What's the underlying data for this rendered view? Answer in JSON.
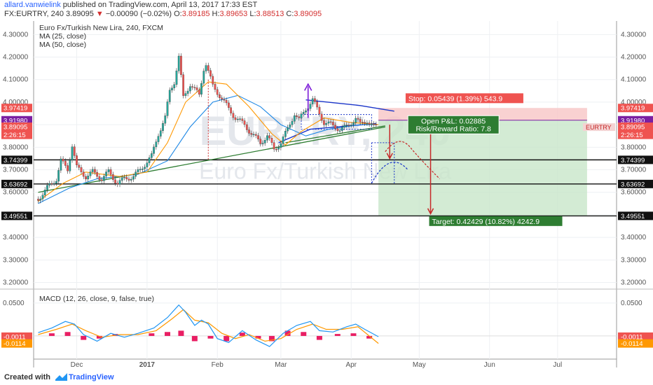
{
  "header": {
    "author": "allard.vanwielink",
    "published": "published on TradingView.com, April 13, 2017 17:33 EST",
    "symbol_line_prefix": "FX:EURTRY, 240  3.89095",
    "change": "−0.00090 (−0.02%)",
    "ohlc_o_label": "O:",
    "ohlc_o": "3.89185",
    "ohlc_h_label": "H:",
    "ohlc_h": "3.89653",
    "ohlc_l_label": "L:",
    "ohlc_l": "3.88513",
    "ohlc_c_label": "C:",
    "ohlc_c": "3.89095"
  },
  "footer": {
    "created_with": "Created with",
    "brand": "TradingView"
  },
  "colors": {
    "up": "#26a69a",
    "down": "#ef5350",
    "ma25": "#ff9800",
    "ma50": "#1e88e5",
    "macd": "#2196f3",
    "signal": "#ff9800",
    "hist": "#e91e63",
    "stop_zone": "#f8c6c6",
    "target_zone": "#c8e6c9",
    "trend": "#2e7d32",
    "wedge": "#1a35c9",
    "arrow": "#7c1bd8",
    "projection": "#c62828"
  },
  "chart_data": [
    {
      "type": "line",
      "title": "Euro Fx/Turkish New Lira, 240, FXCM",
      "watermark_symbol": "EURTRY, 240",
      "watermark_name": "Euro Fx/Turkish New Lira",
      "legend": [
        "MA (25, close)",
        "MA (50, close)"
      ],
      "ylim": [
        3.18,
        4.36
      ],
      "y_ticks": [
        "3.20000",
        "3.30000",
        "3.40000",
        "3.50000",
        "3.60000",
        "3.70000",
        "3.80000",
        "3.90000",
        "4.00000",
        "4.10000",
        "4.20000",
        "4.30000"
      ],
      "x_ticks": [
        "Dec",
        "2017",
        "Feb",
        "Mar",
        "Apr",
        "May",
        "Jun",
        "Jul"
      ],
      "x_tick_dates": [
        "2016-12-01",
        "2017-01-01",
        "2017-02-01",
        "2017-03-01",
        "2017-04-01",
        "2017-05-01",
        "2017-06-01",
        "2017-07-01"
      ],
      "xlim": [
        "2016-11-12",
        "2017-07-27"
      ],
      "price_path": [
        [
          "2016-11-14",
          3.57
        ],
        [
          "2016-11-18",
          3.62
        ],
        [
          "2016-11-22",
          3.66
        ],
        [
          "2016-11-24",
          3.74
        ],
        [
          "2016-11-27",
          3.7
        ],
        [
          "2016-11-29",
          3.81
        ],
        [
          "2016-12-01",
          3.71
        ],
        [
          "2016-12-05",
          3.67
        ],
        [
          "2016-12-08",
          3.69
        ],
        [
          "2016-12-12",
          3.66
        ],
        [
          "2016-12-15",
          3.69
        ],
        [
          "2016-12-19",
          3.64
        ],
        [
          "2016-12-22",
          3.66
        ],
        [
          "2016-12-26",
          3.67
        ],
        [
          "2016-12-29",
          3.7
        ],
        [
          "2017-01-03",
          3.76
        ],
        [
          "2017-01-06",
          3.86
        ],
        [
          "2017-01-09",
          3.93
        ],
        [
          "2017-01-11",
          4.05
        ],
        [
          "2017-01-13",
          4.09
        ],
        [
          "2017-01-15",
          4.2
        ],
        [
          "2017-01-17",
          4.02
        ],
        [
          "2017-01-20",
          4.08
        ],
        [
          "2017-01-24",
          4.03
        ],
        [
          "2017-01-26",
          4.15
        ],
        [
          "2017-01-27",
          4.17
        ],
        [
          "2017-01-30",
          4.07
        ],
        [
          "2017-02-02",
          4.03
        ],
        [
          "2017-02-06",
          3.97
        ],
        [
          "2017-02-09",
          3.93
        ],
        [
          "2017-02-13",
          3.9
        ],
        [
          "2017-02-16",
          3.86
        ],
        [
          "2017-02-20",
          3.82
        ],
        [
          "2017-02-23",
          3.85
        ],
        [
          "2017-02-26",
          3.79
        ],
        [
          "2017-03-01",
          3.82
        ],
        [
          "2017-03-04",
          3.88
        ],
        [
          "2017-03-07",
          3.95
        ],
        [
          "2017-03-09",
          3.92
        ],
        [
          "2017-03-12",
          3.97
        ],
        [
          "2017-03-15",
          4.01
        ],
        [
          "2017-03-17",
          3.97
        ],
        [
          "2017-03-20",
          3.91
        ],
        [
          "2017-03-23",
          3.9
        ],
        [
          "2017-03-27",
          3.88
        ],
        [
          "2017-03-30",
          3.89
        ],
        [
          "2017-04-03",
          3.93
        ],
        [
          "2017-04-05",
          3.9
        ],
        [
          "2017-04-08",
          3.92
        ],
        [
          "2017-04-11",
          3.89
        ],
        [
          "2017-04-13",
          3.89095
        ]
      ],
      "ma25_path": [
        [
          "2016-11-14",
          3.56
        ],
        [
          "2016-11-25",
          3.64
        ],
        [
          "2016-12-05",
          3.69
        ],
        [
          "2016-12-20",
          3.67
        ],
        [
          "2017-01-01",
          3.69
        ],
        [
          "2017-01-10",
          3.82
        ],
        [
          "2017-01-18",
          4.0
        ],
        [
          "2017-01-28",
          4.09
        ],
        [
          "2017-02-05",
          4.08
        ],
        [
          "2017-02-15",
          3.98
        ],
        [
          "2017-02-25",
          3.86
        ],
        [
          "2017-03-03",
          3.81
        ],
        [
          "2017-03-10",
          3.87
        ],
        [
          "2017-03-20",
          3.93
        ],
        [
          "2017-04-01",
          3.91
        ],
        [
          "2017-04-13",
          3.9
        ]
      ],
      "ma50_path": [
        [
          "2016-11-14",
          3.55
        ],
        [
          "2016-11-28",
          3.62
        ],
        [
          "2016-12-10",
          3.66
        ],
        [
          "2016-12-28",
          3.68
        ],
        [
          "2017-01-10",
          3.74
        ],
        [
          "2017-01-20",
          3.89
        ],
        [
          "2017-01-30",
          4.0
        ],
        [
          "2017-02-10",
          4.03
        ],
        [
          "2017-02-20",
          3.98
        ],
        [
          "2017-03-01",
          3.9
        ],
        [
          "2017-03-12",
          3.85
        ],
        [
          "2017-03-22",
          3.88
        ],
        [
          "2017-04-05",
          3.9
        ],
        [
          "2017-04-13",
          3.9
        ]
      ],
      "horizontal_levels": [
        {
          "value": 3.74399,
          "label": "3.74399"
        },
        {
          "value": 3.63692,
          "label": "3.63692"
        },
        {
          "value": 3.49551,
          "label": "3.49551"
        }
      ],
      "right_labels": [
        {
          "value": 3.97419,
          "label": "3.97419",
          "color": "#ef5350"
        },
        {
          "value": 3.9198,
          "label": "3.91980",
          "color": "#7b1fa2"
        },
        {
          "value": 3.89095,
          "label": "3.89095",
          "color": "#ef5350"
        },
        {
          "value": 3.855,
          "label": "2:26:15",
          "color": "#ef5350"
        }
      ],
      "left_labels": [
        {
          "value": 3.97419,
          "label": "3.97419",
          "color": "#ef5350"
        },
        {
          "value": 3.9198,
          "label": "3.91980",
          "color": "#7b1fa2"
        },
        {
          "value": 3.89095,
          "label": "3.89095",
          "color": "#ef5350"
        },
        {
          "value": 3.855,
          "label": "2:26:15",
          "color": "#ef5350"
        }
      ],
      "symbol_tag": "EURTRY",
      "position": {
        "entry": 3.9198,
        "stop": 3.97419,
        "target": 3.49551,
        "start": "2017-04-13",
        "end": "2017-07-14",
        "stop_label": "Stop: 0.05439 (1.39%) 543.9",
        "pnl_label": "Open P&L: 0.02885",
        "rr_label": "Risk/Reward Ratio: 7.8",
        "target_label": "Target: 0.42429 (10.82%) 4242.9"
      }
    },
    {
      "type": "line",
      "title": "MACD (12, 26, close, 9, false, true)",
      "ylim": [
        -0.032,
        0.068
      ],
      "y_ticks": [
        "0.0500"
      ],
      "y_tick_values": [
        0.05
      ],
      "right_labels": [
        {
          "value": -0.0011,
          "label": "-0.0011",
          "color": "#ef5350"
        },
        {
          "value": -0.0114,
          "label": "-0.0114",
          "color": "#ff9800"
        }
      ],
      "macd": [
        [
          "2016-11-14",
          0.005
        ],
        [
          "2016-11-20",
          0.012
        ],
        [
          "2016-11-26",
          0.022
        ],
        [
          "2016-11-30",
          0.018
        ],
        [
          "2016-12-04",
          0.002
        ],
        [
          "2016-12-10",
          -0.008
        ],
        [
          "2016-12-16",
          0.004
        ],
        [
          "2016-12-22",
          -0.002
        ],
        [
          "2016-12-28",
          0.004
        ],
        [
          "2017-01-04",
          0.012
        ],
        [
          "2017-01-10",
          0.028
        ],
        [
          "2017-01-15",
          0.047
        ],
        [
          "2017-01-18",
          0.036
        ],
        [
          "2017-01-22",
          0.016
        ],
        [
          "2017-01-25",
          0.024
        ],
        [
          "2017-01-28",
          0.018
        ],
        [
          "2017-02-01",
          -0.004
        ],
        [
          "2017-02-06",
          -0.01
        ],
        [
          "2017-02-12",
          0.008
        ],
        [
          "2017-02-18",
          -0.006
        ],
        [
          "2017-02-24",
          -0.016
        ],
        [
          "2017-03-02",
          0.004
        ],
        [
          "2017-03-08",
          0.016
        ],
        [
          "2017-03-14",
          0.022
        ],
        [
          "2017-03-18",
          0.008
        ],
        [
          "2017-03-24",
          0.006
        ],
        [
          "2017-03-30",
          0.014
        ],
        [
          "2017-04-03",
          0.018
        ],
        [
          "2017-04-07",
          0.01
        ],
        [
          "2017-04-13",
          -0.0011
        ]
      ],
      "signal": [
        [
          "2016-11-14",
          0.002
        ],
        [
          "2016-11-22",
          0.01
        ],
        [
          "2016-11-29",
          0.018
        ],
        [
          "2016-12-05",
          0.008
        ],
        [
          "2016-12-12",
          -0.002
        ],
        [
          "2016-12-20",
          0.002
        ],
        [
          "2016-12-28",
          0.002
        ],
        [
          "2017-01-05",
          0.008
        ],
        [
          "2017-01-12",
          0.026
        ],
        [
          "2017-01-17",
          0.04
        ],
        [
          "2017-01-22",
          0.024
        ],
        [
          "2017-01-28",
          0.02
        ],
        [
          "2017-02-03",
          0.004
        ],
        [
          "2017-02-09",
          -0.004
        ],
        [
          "2017-02-15",
          0.002
        ],
        [
          "2017-02-22",
          -0.008
        ],
        [
          "2017-03-01",
          -0.004
        ],
        [
          "2017-03-08",
          0.01
        ],
        [
          "2017-03-15",
          0.018
        ],
        [
          "2017-03-21",
          0.01
        ],
        [
          "2017-03-28",
          0.01
        ],
        [
          "2017-04-04",
          0.014
        ],
        [
          "2017-04-13",
          -0.0114
        ]
      ],
      "histogram": [
        [
          "2016-11-20",
          0.004
        ],
        [
          "2016-11-27",
          0.006
        ],
        [
          "2016-12-04",
          -0.006
        ],
        [
          "2016-12-11",
          -0.004
        ],
        [
          "2016-12-18",
          0.003
        ],
        [
          "2017-01-03",
          0.004
        ],
        [
          "2017-01-10",
          0.006
        ],
        [
          "2017-01-16",
          0.008
        ],
        [
          "2017-01-22",
          -0.008
        ],
        [
          "2017-01-29",
          -0.004
        ],
        [
          "2017-02-05",
          -0.008
        ],
        [
          "2017-02-12",
          0.005
        ],
        [
          "2017-02-19",
          -0.004
        ],
        [
          "2017-02-25",
          -0.008
        ],
        [
          "2017-03-04",
          0.008
        ],
        [
          "2017-03-11",
          0.006
        ],
        [
          "2017-03-18",
          -0.006
        ],
        [
          "2017-03-26",
          0.003
        ],
        [
          "2017-04-02",
          0.004
        ],
        [
          "2017-04-09",
          -0.004
        ]
      ]
    }
  ]
}
